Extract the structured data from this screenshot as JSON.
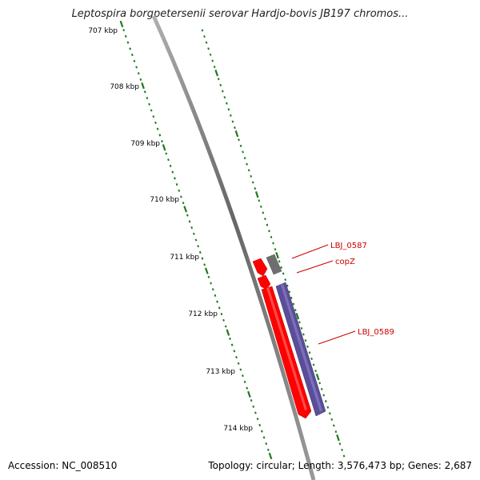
{
  "title": "Leptospira borgpetersenii serovar Hardjo-bovis JB197 chromos...",
  "footer": {
    "accession": "Accession: NC_008510",
    "summary": "Topology: circular; Length: 3,576,473 bp; Genes: 2,687"
  },
  "ticks": [
    "707 kbp",
    "708 kbp",
    "709 kbp",
    "710 kbp",
    "711 kbp",
    "712 kbp",
    "713 kbp",
    "714 kbp"
  ],
  "genes": [
    {
      "label": "LBJ_0587",
      "color": "#808080",
      "strand": "+"
    },
    {
      "label": "copZ",
      "color": "#ff0000",
      "strand": "-"
    },
    {
      "label": "LBJ_0589",
      "color": "#5b4e99",
      "strand": "+"
    }
  ],
  "unlabeled_genes": [
    {
      "color": "#ff0000",
      "strand": "-"
    },
    {
      "color": "#ff0000",
      "strand": "-"
    }
  ],
  "colors": {
    "backbone": "#808080",
    "tick_marks": "#1e7a1e",
    "gene_label": "#cc0000",
    "forward_gene": "#5b4e99",
    "reverse_gene": "#ff0000"
  }
}
